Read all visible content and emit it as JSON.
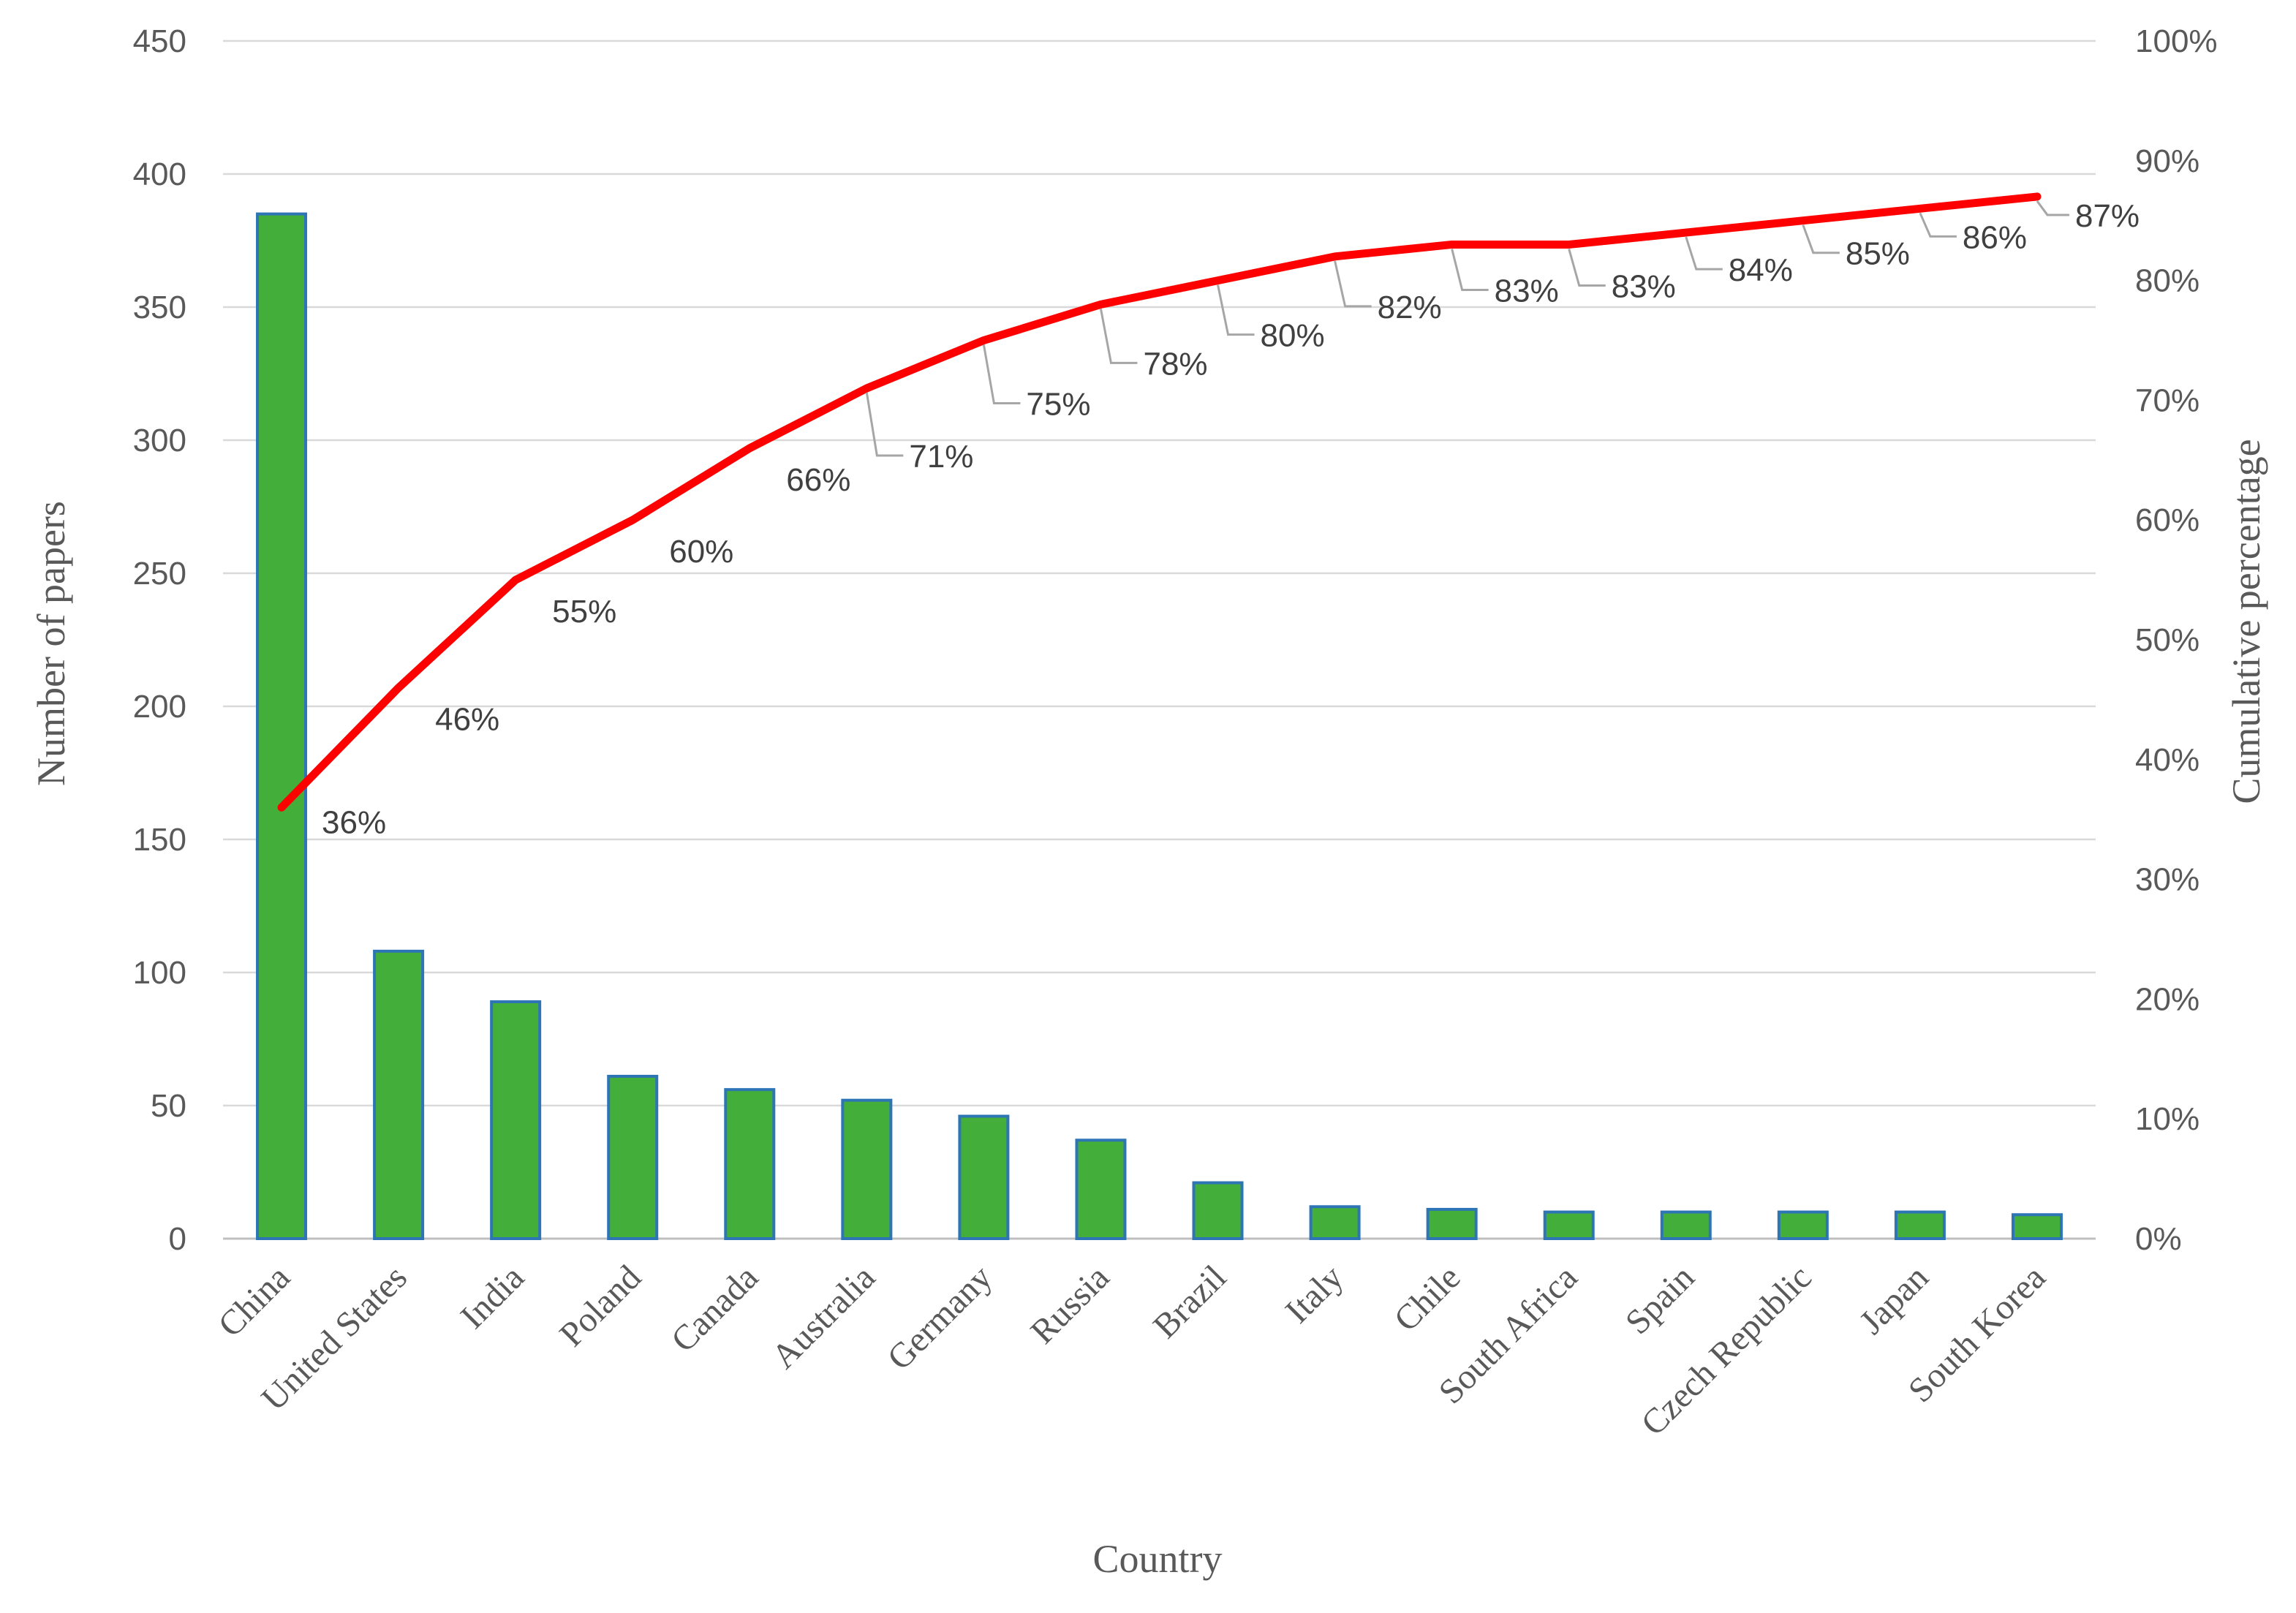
{
  "chart_data": {
    "type": "bar",
    "title": "",
    "xlabel": "Country",
    "ylabel": "Number of papers",
    "y2label": "Cumulative percentage",
    "ylim": [
      0,
      450
    ],
    "y2lim": [
      0,
      100
    ],
    "yticks": [
      "0",
      "50",
      "100",
      "150",
      "200",
      "250",
      "300",
      "350",
      "400",
      "450"
    ],
    "y2ticks": [
      "0%",
      "10%",
      "20%",
      "30%",
      "40%",
      "50%",
      "60%",
      "70%",
      "80%",
      "90%",
      "100%"
    ],
    "grid": true,
    "legend": "none",
    "categories": [
      "China",
      "United States",
      "India",
      "Poland",
      "Canada",
      "Australia",
      "Germany",
      "Russia",
      "Brazil",
      "Italy",
      "Chile",
      "South Africa",
      "Spain",
      "Czech Republic",
      "Japan",
      "South Korea"
    ],
    "series": [
      {
        "type": "bar",
        "axis": "left",
        "values": [
          385,
          108,
          89,
          61,
          56,
          52,
          46,
          37,
          21,
          12,
          11,
          10,
          10,
          10,
          10,
          9
        ],
        "color": "#44AE3B",
        "edge_color": "#2E75B6"
      },
      {
        "type": "line",
        "axis": "right",
        "values": [
          36,
          46,
          55,
          60,
          66,
          71,
          75,
          78,
          80,
          82,
          83,
          83,
          84,
          85,
          86,
          87
        ],
        "labels": [
          "36%",
          "46%",
          "55%",
          "60%",
          "66%",
          "71%",
          "75%",
          "78%",
          "80%",
          "82%",
          "83%",
          "83%",
          "84%",
          "85%",
          "86%",
          "87%"
        ],
        "color": "#FF0000"
      }
    ],
    "colors": {
      "grid": "#D9D9D9",
      "axis": "#BFBFBF",
      "text": "#595959",
      "leader": "#A6A6A6"
    }
  }
}
